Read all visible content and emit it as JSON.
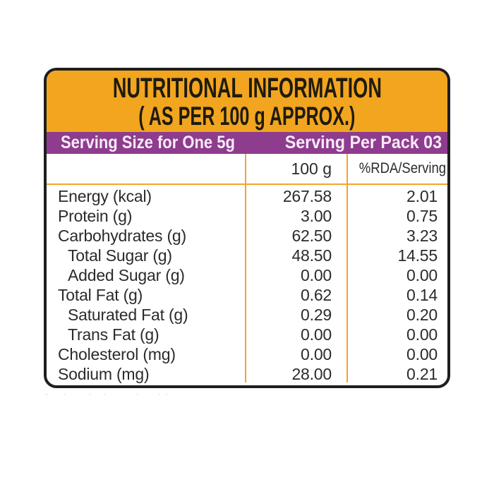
{
  "label": {
    "title_line1": "NUTRITIONAL INFORMATION",
    "title_line2": "( AS PER 100 g APPROX.)",
    "serving_bar": {
      "left": "Serving Size for One 5g",
      "right": "Serving Per Pack 03"
    },
    "columns": {
      "amount_header": "100 g",
      "rda_header": "%RDA/Serving"
    },
    "rows": [
      {
        "label": "Energy (kcal)",
        "per_100g": "267.58",
        "rda_per_serving": "2.01",
        "indent": false
      },
      {
        "label": "Protein (g)",
        "per_100g": "3.00",
        "rda_per_serving": "0.75",
        "indent": false
      },
      {
        "label": "Carbohydrates (g)",
        "per_100g": "62.50",
        "rda_per_serving": "3.23",
        "indent": false
      },
      {
        "label": "Total Sugar (g)",
        "per_100g": "48.50",
        "rda_per_serving": "14.55",
        "indent": true
      },
      {
        "label": "Added Sugar (g)",
        "per_100g": "0.00",
        "rda_per_serving": "0.00",
        "indent": true
      },
      {
        "label": "Total Fat (g)",
        "per_100g": "0.62",
        "rda_per_serving": "0.14",
        "indent": false
      },
      {
        "label": "Saturated Fat (g)",
        "per_100g": "0.29",
        "rda_per_serving": "0.20",
        "indent": true
      },
      {
        "label": "Trans Fat (g)",
        "per_100g": "0.00",
        "rda_per_serving": "0.00",
        "indent": true
      },
      {
        "label": "Cholesterol (mg)",
        "per_100g": "0.00",
        "rda_per_serving": "0.00",
        "indent": false
      },
      {
        "label": "Sodium (mg)",
        "per_100g": "28.00",
        "rda_per_serving": "0.21",
        "indent": false
      }
    ],
    "footnote_marks": "-    ·      ·   ·        ·     · ·",
    "colors": {
      "header_bg": "#F2A51F",
      "serving_bar_bg": "#8E3C8E",
      "grid_line": "#F5A42B",
      "border": "#1E1E1E",
      "body_text": "#2B2B2B",
      "bar_text": "#F8EBF8"
    }
  }
}
